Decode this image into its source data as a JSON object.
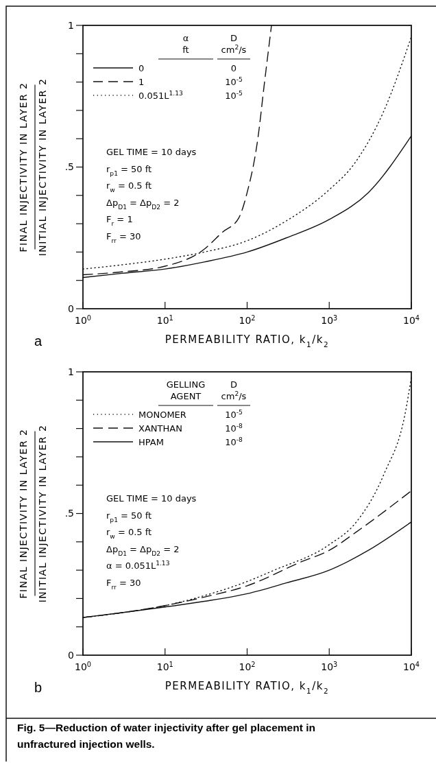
{
  "chart_data": [
    {
      "type": "line",
      "ylabel": "FINAL INJECTIVITY IN LAYER 2\nINITIAL INJECTIVITY IN LAYER 2",
      "xlabel": "PERMEABILITY RATIO, k$_{1}$/k$_{2}$",
      "log": "x",
      "grid": false,
      "legend": "top left",
      "xlim": [
        1,
        10000
      ],
      "ylim": [
        0,
        1
      ],
      "xticks": [
        {
          "value": 1,
          "label": "10$^{0}$"
        },
        {
          "value": 10,
          "label": "10$^{1}$"
        },
        {
          "value": 100,
          "label": "10$^{2}$"
        },
        {
          "value": 1000,
          "label": "10$^{3}$"
        },
        {
          "value": 10000,
          "label": "10$^{4}$"
        }
      ],
      "yticks": [
        {
          "value": 0,
          "label": "0"
        },
        {
          "value": 0.1,
          "label": null
        },
        {
          "value": 0.2,
          "label": null
        },
        {
          "value": 0.3,
          "label": null
        },
        {
          "value": 0.4,
          "label": null
        },
        {
          "value": 0.5,
          "label": ".5"
        },
        {
          "value": 0.6,
          "label": null
        },
        {
          "value": 0.7,
          "label": null
        },
        {
          "value": 0.8,
          "label": null
        },
        {
          "value": 0.9,
          "label": null
        },
        {
          "value": 1,
          "label": "1"
        }
      ],
      "series": [
        {
          "name": "0",
          "color": "#111111",
          "line_style": "solid",
          "x": [
            1,
            3,
            10,
            30,
            100,
            300,
            1000,
            3000,
            10000
          ],
          "values": [
            0.11,
            0.125,
            0.14,
            0.165,
            0.2,
            0.25,
            0.315,
            0.41,
            0.61
          ]
        },
        {
          "name": "1",
          "color": "#111111",
          "line_style": "dashed",
          "x": [
            1,
            3,
            10,
            30,
            50,
            79,
            100,
            135,
            163,
            198
          ],
          "values": [
            0.12,
            0.13,
            0.15,
            0.21,
            0.27,
            0.32,
            0.41,
            0.6,
            0.8,
            1.0
          ]
        },
        {
          "name": "0.051L$^{1.13}$",
          "color": "#111111",
          "line_style": "dotted",
          "x": [
            1,
            3,
            10,
            30,
            100,
            300,
            1000,
            2000,
            4660,
            10000
          ],
          "values": [
            0.14,
            0.155,
            0.175,
            0.2,
            0.24,
            0.31,
            0.42,
            0.51,
            0.7,
            0.96
          ]
        }
      ],
      "annotations": [
        "α\nft",
        "D\ncm$^{2}$/s",
        "0",
        "10$^{-5}$",
        "10$^{-5}$",
        "GEL TIME = 10 days\nr$_{p1}$ = 50 ft\nr$_{w}$ = 0.5 ft\nΔp$_{D1}$ = Δp$_{D2}$ = 2\nF$_{r}$ = 1\nF$_{rr}$ = 30",
        "a"
      ]
    },
    {
      "type": "line",
      "ylabel": "FINAL INJECTIVITY IN LAYER 2\nINITIAL INJECTIVITY IN LAYER 2",
      "xlabel": "PERMEABILITY RATIO, k$_{1}$/k$_{2}$",
      "log": "x",
      "grid": false,
      "legend": "top left",
      "xlim": [
        1,
        10000
      ],
      "ylim": [
        0,
        1
      ],
      "xticks": [
        {
          "value": 1,
          "label": "10$^{0}$"
        },
        {
          "value": 10,
          "label": "10$^{1}$"
        },
        {
          "value": 100,
          "label": "10$^{2}$"
        },
        {
          "value": 1000,
          "label": "10$^{3}$"
        },
        {
          "value": 10000,
          "label": "10$^{4}$"
        }
      ],
      "yticks": [
        {
          "value": 0,
          "label": "0"
        },
        {
          "value": 0.1,
          "label": null
        },
        {
          "value": 0.2,
          "label": null
        },
        {
          "value": 0.3,
          "label": null
        },
        {
          "value": 0.4,
          "label": null
        },
        {
          "value": 0.5,
          "label": ".5"
        },
        {
          "value": 0.6,
          "label": null
        },
        {
          "value": 0.7,
          "label": null
        },
        {
          "value": 0.8,
          "label": null
        },
        {
          "value": 0.9,
          "label": null
        },
        {
          "value": 1,
          "label": "1"
        }
      ],
      "series": [
        {
          "name": "MONOMER",
          "color": "#111111",
          "line_style": "dotted",
          "x": [
            1,
            3,
            10,
            30,
            100,
            214,
            1000,
            2140,
            4660,
            8500,
            10000
          ],
          "values": [
            0.133,
            0.15,
            0.175,
            0.21,
            0.26,
            0.3,
            0.39,
            0.47,
            0.64,
            0.86,
            0.98
          ]
        },
        {
          "name": "XANTHAN",
          "color": "#111111",
          "line_style": "dashed",
          "x": [
            1,
            3,
            10,
            30,
            100,
            460,
            1000,
            2140,
            10000
          ],
          "values": [
            0.133,
            0.15,
            0.175,
            0.205,
            0.245,
            0.33,
            0.37,
            0.435,
            0.58
          ]
        },
        {
          "name": "HPAM",
          "color": "#111111",
          "line_style": "solid",
          "x": [
            1,
            3,
            10,
            30,
            100,
            300,
            1000,
            3000,
            10000
          ],
          "values": [
            0.133,
            0.15,
            0.17,
            0.19,
            0.217,
            0.255,
            0.3,
            0.37,
            0.47
          ]
        }
      ],
      "annotations": [
        "GELLING\nAGENT",
        "D\ncm$^{2}$/s",
        "10$^{-5}$",
        "10$^{-8}$",
        "10$^{-8}$",
        "GEL TIME = 10 days\nr$_{p1}$ = 50 ft\nr$_{w}$ = 0.5 ft\nΔp$_{D1}$ = Δp$_{D2}$ = 2\nα = 0.051L$^{1.13}$\nF$_{rr}$ = 30",
        "b",
        "Fig. 5—Reduction of water injectivity after gel placement in\nunfractured injection wells."
      ]
    }
  ]
}
